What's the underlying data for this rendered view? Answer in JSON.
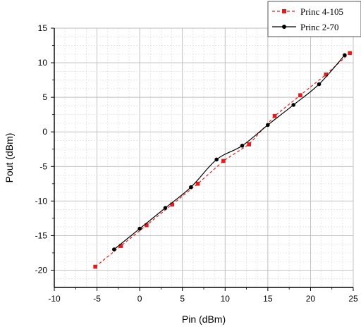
{
  "chart_data": {
    "type": "line",
    "title": "",
    "xlabel": "Pin (dBm)",
    "ylabel": "Pout (dBm)",
    "xlim": [
      -10,
      25
    ],
    "ylim": [
      -22.5,
      15
    ],
    "xticks": [
      -10,
      -5,
      0,
      5,
      10,
      15,
      20,
      25
    ],
    "yticks": [
      -20,
      -15,
      -10,
      -5,
      0,
      5,
      10,
      15
    ],
    "xtick_labels": [
      "-10",
      "-5",
      "0",
      "5",
      "10",
      "15",
      "20",
      "25"
    ],
    "ytick_labels": [
      "-20",
      "-15",
      "-10",
      "-5",
      "0",
      "5",
      "10",
      "15"
    ],
    "grid": true,
    "legend_position": "top-right",
    "series": [
      {
        "name": "Princ 4-105",
        "color": "#e41a1c",
        "line_style": "dashed",
        "marker": "square",
        "x": [
          -5.2,
          -2.2,
          0.8,
          3.8,
          6.8,
          9.8,
          12.8,
          15.8,
          18.8,
          21.8,
          24.6
        ],
        "y": [
          -19.5,
          -16.5,
          -13.5,
          -10.5,
          -7.5,
          -4.2,
          -1.8,
          2.3,
          5.3,
          8.3,
          11.4
        ]
      },
      {
        "name": "Princ 2-70",
        "color": "#000000",
        "line_style": "solid",
        "marker": "circle",
        "x": [
          -3,
          0,
          3,
          6,
          9,
          12,
          15,
          18,
          21,
          24
        ],
        "y": [
          -17,
          -14,
          -11,
          -8,
          -4,
          -2,
          1,
          3.9,
          6.9,
          11.1
        ]
      }
    ]
  }
}
